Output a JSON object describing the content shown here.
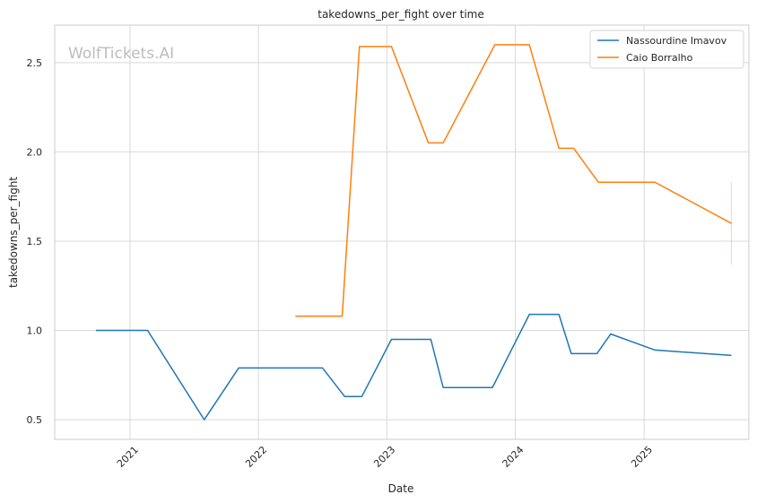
{
  "chart_data": {
    "type": "line",
    "title": "takedowns_per_fight over time",
    "xlabel": "Date",
    "ylabel": "takedowns_per_fight",
    "watermark": "WolfTickets.AI",
    "xlim": [
      "2020-06-01",
      "2025-10-26"
    ],
    "ylim": [
      0.39,
      2.71
    ],
    "x_ticks": [
      {
        "date": "2021-01-01",
        "label": "2021"
      },
      {
        "date": "2022-01-01",
        "label": "2022"
      },
      {
        "date": "2023-01-01",
        "label": "2023"
      },
      {
        "date": "2024-01-01",
        "label": "2024"
      },
      {
        "date": "2025-01-01",
        "label": "2025"
      }
    ],
    "y_ticks": [
      {
        "value": 0.5,
        "label": "0.5"
      },
      {
        "value": 1.0,
        "label": "1.0"
      },
      {
        "value": 1.5,
        "label": "1.5"
      },
      {
        "value": 2.0,
        "label": "2.0"
      },
      {
        "value": 2.5,
        "label": "2.5"
      }
    ],
    "grid": true,
    "legend_position": "top-right",
    "series": [
      {
        "name": "Nassourdine Imavov",
        "color": "#1f77b4",
        "points": [
          {
            "x": "2020-09-26",
            "y": 1.0
          },
          {
            "x": "2021-02-20",
            "y": 1.0
          },
          {
            "x": "2021-07-31",
            "y": 0.5
          },
          {
            "x": "2021-11-06",
            "y": 0.79
          },
          {
            "x": "2022-07-02",
            "y": 0.79
          },
          {
            "x": "2022-09-03",
            "y": 0.63
          },
          {
            "x": "2022-10-22",
            "y": 0.63
          },
          {
            "x": "2023-01-14",
            "y": 0.95
          },
          {
            "x": "2023-05-06",
            "y": 0.95
          },
          {
            "x": "2023-06-10",
            "y": 0.68
          },
          {
            "x": "2023-10-28",
            "y": 0.68
          },
          {
            "x": "2024-02-10",
            "y": 1.09
          },
          {
            "x": "2024-05-04",
            "y": 1.09
          },
          {
            "x": "2024-06-08",
            "y": 0.87
          },
          {
            "x": "2024-08-20",
            "y": 0.87
          },
          {
            "x": "2024-09-28",
            "y": 0.98
          },
          {
            "x": "2025-02-01",
            "y": 0.89
          },
          {
            "x": "2025-09-06",
            "y": 0.86
          }
        ]
      },
      {
        "name": "Caio Borralho",
        "color": "#ff7f0e",
        "points": [
          {
            "x": "2022-04-16",
            "y": 1.08
          },
          {
            "x": "2022-08-27",
            "y": 1.08
          },
          {
            "x": "2022-10-15",
            "y": 2.59
          },
          {
            "x": "2023-01-14",
            "y": 2.59
          },
          {
            "x": "2023-04-29",
            "y": 2.05
          },
          {
            "x": "2023-06-10",
            "y": 2.05
          },
          {
            "x": "2023-11-04",
            "y": 2.6
          },
          {
            "x": "2024-02-10",
            "y": 2.6
          },
          {
            "x": "2024-05-04",
            "y": 2.02
          },
          {
            "x": "2024-06-15",
            "y": 2.02
          },
          {
            "x": "2024-08-24",
            "y": 1.83
          },
          {
            "x": "2025-02-01",
            "y": 1.83
          },
          {
            "x": "2025-09-06",
            "y": 1.6
          }
        ],
        "error_bar": {
          "x": "2025-09-06",
          "low": 1.37,
          "high": 1.83
        }
      }
    ]
  }
}
